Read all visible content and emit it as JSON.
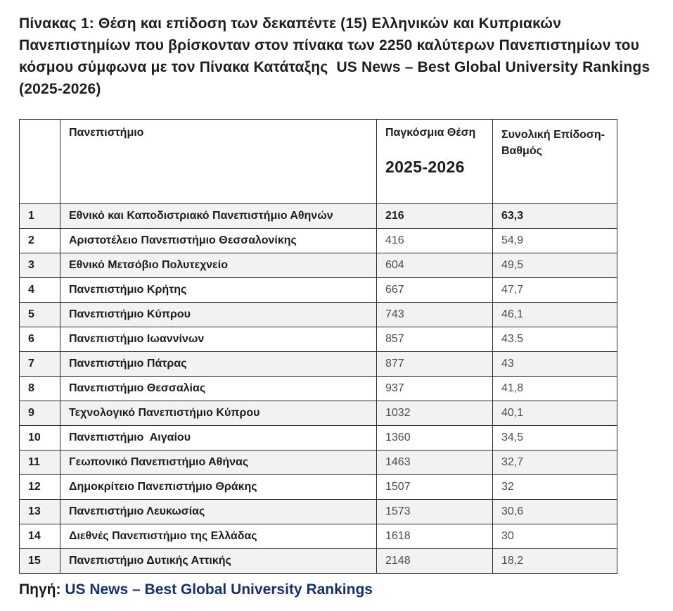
{
  "title": "Πίνακας 1: Θέση και επίδοση των δεκαπέντε (15) Ελληνικών και Κυπριακών Πανεπιστημίων που βρίσκονταν στον πίνακα των 2250 καλύτερων Πανεπιστημίων του κόσμου σύμφωνα με τον Πίνακα Κατάταξης  US News – Best Global University Rankings (2025-2026)",
  "table": {
    "headers": {
      "index": "",
      "university": "Πανεπιστήμιο",
      "rank_label": "Παγκόσμια Θέση",
      "rank_period": "2025-2026",
      "score_label": "Συνολική Επίδοση-Βαθμός"
    },
    "rows": [
      {
        "index": "1",
        "university": "Εθνικό και Καποδιστριακό Πανεπιστήμιο Αθηνών",
        "rank": "216",
        "score": "63,3",
        "emphasis": true
      },
      {
        "index": "2",
        "university": "Αριστοτέλειο Πανεπιστήμιο Θεσσαλονίκης",
        "rank": "416",
        "score": "54,9",
        "emphasis": false
      },
      {
        "index": "3",
        "university": "Εθνικό Μετσόβιο Πολυτεχνείο",
        "rank": "604",
        "score": "49,5",
        "emphasis": false
      },
      {
        "index": "4",
        "university": "Πανεπιστήμιο Κρήτης",
        "rank": "667",
        "score": "47,7",
        "emphasis": false
      },
      {
        "index": "5",
        "university": "Πανεπιστήμιο Κύπρου",
        "rank": "743",
        "score": "46,1",
        "emphasis": false
      },
      {
        "index": "6",
        "university": "Πανεπιστήμιο Ιωαννίνων",
        "rank": "857",
        "score": "43.5",
        "emphasis": false
      },
      {
        "index": "7",
        "university": "Πανεπιστήμιο Πάτρας",
        "rank": "877",
        "score": "43",
        "emphasis": false
      },
      {
        "index": "8",
        "university": "Πανεπιστήμιο Θεσσαλίας",
        "rank": "937",
        "score": "41,8",
        "emphasis": false
      },
      {
        "index": "9",
        "university": "Τεχνολογικό Πανεπιστήμιο Κύπρου",
        "rank": "1032",
        "score": "40,1",
        "emphasis": false
      },
      {
        "index": "10",
        "university": "Πανεπιστήμιο  Αιγαίου",
        "rank": "1360",
        "score": "34,5",
        "emphasis": false
      },
      {
        "index": "11",
        "university": "Γεωπονικό Πανεπιστήμιο Αθήνας",
        "rank": "1463",
        "score": "32,7",
        "emphasis": false
      },
      {
        "index": "12",
        "university": "Δημοκρίτειο Πανεπιστήμιο Θράκης",
        "rank": "1507",
        "score": "32",
        "emphasis": false
      },
      {
        "index": "13",
        "university": "Πανεπιστήμιο Λευκωσίας",
        "rank": "1573",
        "score": "30,6",
        "emphasis": false
      },
      {
        "index": "14",
        "university": "Διεθνές Πανεπιστήμιο της Ελλάδας",
        "rank": "1618",
        "score": "30",
        "emphasis": false
      },
      {
        "index": "15",
        "university": "Πανεπιστήμιο Δυτικής Αττικής",
        "rank": "2148",
        "score": "18,2",
        "emphasis": false
      }
    ]
  },
  "footer": {
    "source_label": "Πηγή: ",
    "source_link": "US News – Best Global University Rankings"
  },
  "colors": {
    "link": "#16306b",
    "row_alt": "#f2f2f2",
    "border": "#2e2e2e",
    "text": "#1d1d1f",
    "muted_value": "#4d4d4d"
  }
}
